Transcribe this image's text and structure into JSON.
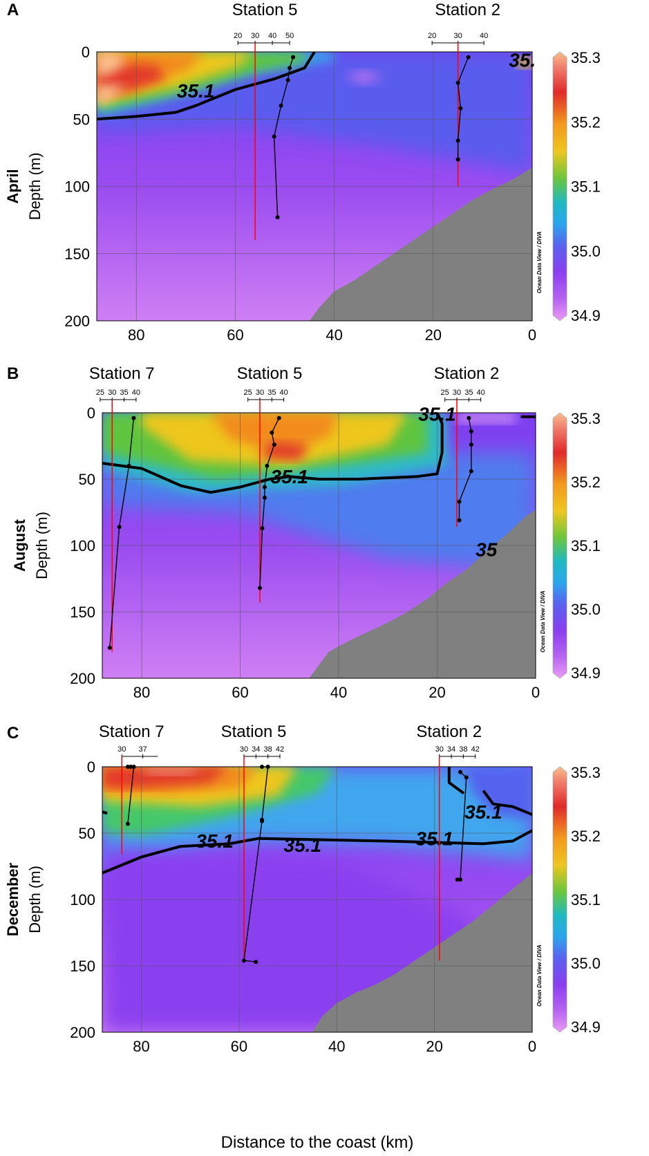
{
  "chart_data": [
    {
      "type": "heatmap",
      "panel": "A",
      "month": "April",
      "ylabel": "Depth (m)",
      "xlim": [
        88,
        0
      ],
      "ylim": [
        0,
        200
      ],
      "x_ticks": [
        "80",
        "60",
        "40",
        "20",
        "0"
      ],
      "y_ticks": [
        "0",
        "50",
        "100",
        "150",
        "200"
      ],
      "colorbar": {
        "ticks": [
          "35.3",
          "35.2",
          "35.1",
          "35.0",
          "34.9"
        ],
        "range": [
          34.9,
          35.3
        ]
      },
      "contour_labels": [
        "35.1",
        "35."
      ],
      "watermark": "Ocean Data View / DIVA",
      "stations": [
        {
          "name": "Station 5",
          "distance_km": 56,
          "profile_ticks": [
            "20",
            "30",
            "40",
            "50"
          ],
          "profile_range": [
            20,
            50
          ],
          "max_depth": 140,
          "profile": [
            {
              "v": 52,
              "d": 4
            },
            {
              "v": 50,
              "d": 12
            },
            {
              "v": 49,
              "d": 21
            },
            {
              "v": 45,
              "d": 40
            },
            {
              "v": 41,
              "d": 63
            },
            {
              "v": 43,
              "d": 123
            }
          ]
        },
        {
          "name": "Station 2",
          "distance_km": 15,
          "profile_ticks": [
            "20",
            "30",
            "40"
          ],
          "profile_range": [
            20,
            40
          ],
          "max_depth": 100,
          "profile": [
            {
              "v": 34,
              "d": 4
            },
            {
              "v": 30,
              "d": 23
            },
            {
              "v": 31,
              "d": 42
            },
            {
              "v": 30,
              "d": 66
            },
            {
              "v": 30,
              "d": 80
            }
          ]
        }
      ]
    },
    {
      "type": "heatmap",
      "panel": "B",
      "month": "August",
      "ylabel": "Depth (m)",
      "xlim": [
        88,
        0
      ],
      "ylim": [
        0,
        200
      ],
      "x_ticks": [
        "80",
        "60",
        "40",
        "20",
        "0"
      ],
      "y_ticks": [
        "0",
        "50",
        "100",
        "150",
        "200"
      ],
      "colorbar": {
        "ticks": [
          "35.3",
          "35.2",
          "35.1",
          "35.0",
          "34.9"
        ],
        "range": [
          34.9,
          35.3
        ]
      },
      "contour_labels": [
        "35.1",
        "35.1",
        "35"
      ],
      "watermark": "Ocean Data View / DIVA",
      "stations": [
        {
          "name": "Station 7",
          "distance_km": 86,
          "profile_ticks": [
            "25",
            "30",
            "35",
            "40"
          ],
          "profile_range": [
            25,
            40
          ],
          "max_depth": 180,
          "profile": [
            {
              "v": 39,
              "d": 4
            },
            {
              "v": 37,
              "d": 40
            },
            {
              "v": 33,
              "d": 86
            },
            {
              "v": 29,
              "d": 177
            }
          ]
        },
        {
          "name": "Station 5",
          "distance_km": 56,
          "profile_ticks": [
            "25",
            "30",
            "35",
            "40"
          ],
          "profile_range": [
            25,
            40
          ],
          "max_depth": 143,
          "profile": [
            {
              "v": 38,
              "d": 4
            },
            {
              "v": 35,
              "d": 15
            },
            {
              "v": 36,
              "d": 24
            },
            {
              "v": 33,
              "d": 40
            },
            {
              "v": 32,
              "d": 56
            },
            {
              "v": 32,
              "d": 64
            },
            {
              "v": 31,
              "d": 87
            },
            {
              "v": 30,
              "d": 132
            }
          ]
        },
        {
          "name": "Station 2",
          "distance_km": 16,
          "profile_ticks": [
            "25",
            "30",
            "35",
            "40"
          ],
          "profile_range": [
            25,
            40
          ],
          "max_depth": 86,
          "profile": [
            {
              "v": 35,
              "d": 4
            },
            {
              "v": 36,
              "d": 14
            },
            {
              "v": 36,
              "d": 24
            },
            {
              "v": 36,
              "d": 44
            },
            {
              "v": 31,
              "d": 67
            },
            {
              "v": 31,
              "d": 81
            }
          ]
        }
      ]
    },
    {
      "type": "heatmap",
      "panel": "C",
      "month": "December",
      "ylabel": "Depth (m)",
      "xlabel": "Distance to the coast (km)",
      "xlim": [
        88,
        0
      ],
      "ylim": [
        0,
        200
      ],
      "x_ticks": [
        "80",
        "60",
        "40",
        "20",
        "0"
      ],
      "y_ticks": [
        "0",
        "50",
        "100",
        "150",
        "200"
      ],
      "colorbar": {
        "ticks": [
          "35.3",
          "35.2",
          "35.1",
          "35.0",
          "34.9"
        ],
        "range": [
          34.9,
          35.3
        ]
      },
      "contour_labels": [
        "35.1",
        "35.1",
        "35.1",
        "35.1"
      ],
      "watermark": "Ocean Data View / DIVA",
      "stations": [
        {
          "name": "Station 7",
          "distance_km": 84,
          "profile_ticks": [
            "30",
            "37"
          ],
          "profile_range": [
            30,
            42
          ],
          "max_depth": 66,
          "profile": [
            {
              "v": 32,
              "d": 0
            },
            {
              "v": 33,
              "d": 0
            },
            {
              "v": 34,
              "d": 0
            },
            {
              "v": 32,
              "d": 43
            }
          ]
        },
        {
          "name": "Station 5",
          "distance_km": 59,
          "profile_ticks": [
            "30",
            "34",
            "38",
            "42"
          ],
          "profile_range": [
            30,
            42
          ],
          "max_depth": 147,
          "profile": [
            {
              "v": 36,
              "d": 0
            },
            {
              "v": 38,
              "d": 0
            },
            {
              "v": 36,
              "d": 40
            },
            {
              "v": 36,
              "d": 41
            },
            {
              "v": 30,
              "d": 146
            },
            {
              "v": 34,
              "d": 147
            }
          ]
        },
        {
          "name": "Station 2",
          "distance_km": 19,
          "profile_ticks": [
            "30",
            "34",
            "38",
            "42"
          ],
          "profile_range": [
            30,
            42
          ],
          "max_depth": 146,
          "profile": [
            {
              "v": 37,
              "d": 4
            },
            {
              "v": 39,
              "d": 8
            },
            {
              "v": 37,
              "d": 85
            },
            {
              "v": 36,
              "d": 85
            }
          ]
        }
      ]
    }
  ],
  "colors": {
    "land": "#808080",
    "station_line": "#ff0000",
    "contour": "#000000",
    "salinity_scale": [
      "#e88ff3",
      "#c47cf0",
      "#8b3ff0",
      "#5462ee",
      "#27b3ea",
      "#3dc45a",
      "#eec61e",
      "#f58b1c",
      "#e33a2a",
      "#f9c08f"
    ]
  }
}
